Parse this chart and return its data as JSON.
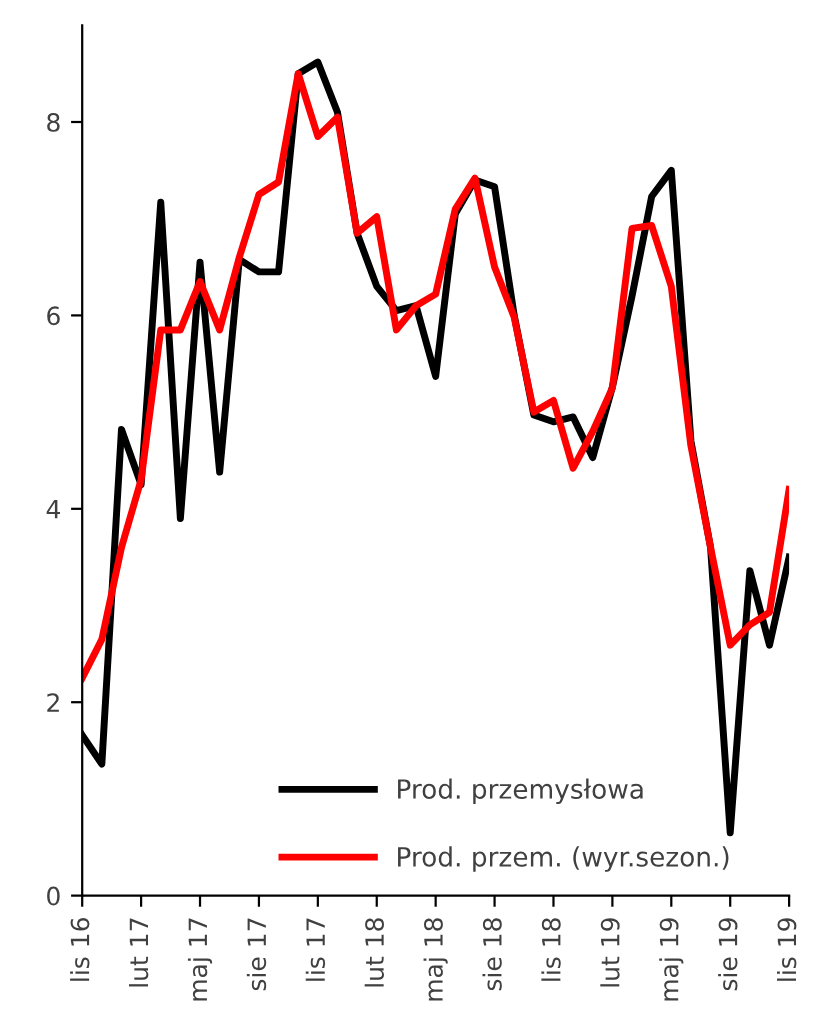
{
  "chart_data": {
    "type": "line",
    "categories": [
      "lis 16",
      null,
      null,
      "lut 17",
      null,
      null,
      "maj 17",
      null,
      null,
      "sie 17",
      null,
      null,
      "lis 17",
      null,
      null,
      "lut 18",
      null,
      null,
      "maj 18",
      null,
      null,
      "sie 18",
      null,
      null,
      "lis 18",
      null,
      null,
      "lut 19",
      null,
      null,
      "maj 19",
      null,
      null,
      "sie 19",
      null,
      null,
      "lis 19"
    ],
    "series": [
      {
        "name": "Prod. przemysłowa",
        "color": "#000000",
        "values": [
          1.66,
          1.36,
          4.82,
          4.25,
          7.17,
          3.9,
          6.55,
          4.38,
          6.58,
          6.45,
          6.45,
          8.5,
          8.62,
          8.1,
          6.85,
          6.3,
          6.05,
          6.1,
          5.37,
          7.05,
          7.4,
          7.33,
          6.0,
          4.97,
          4.9,
          4.95,
          4.53,
          5.26,
          6.2,
          7.23,
          7.5,
          4.7,
          3.6,
          0.65,
          3.36,
          2.59,
          3.5
        ]
      },
      {
        "name": "Prod. przem. (wyr.sezon.)",
        "color": "#ff0000",
        "values": [
          2.25,
          2.65,
          3.6,
          4.3,
          5.85,
          5.85,
          6.35,
          5.85,
          6.6,
          7.25,
          7.38,
          8.5,
          7.85,
          8.05,
          6.85,
          7.02,
          5.85,
          6.1,
          6.22,
          7.1,
          7.42,
          6.5,
          5.98,
          5.0,
          5.12,
          4.42,
          4.8,
          5.25,
          6.9,
          6.93,
          6.3,
          4.65,
          3.6,
          2.59,
          2.8,
          2.93,
          4.2
        ]
      }
    ],
    "ylim": [
      0,
      9
    ],
    "yticks": [
      0,
      2,
      4,
      6,
      8
    ],
    "grid": false,
    "legend": "bottom",
    "line_style": "solid",
    "marker": "none"
  }
}
